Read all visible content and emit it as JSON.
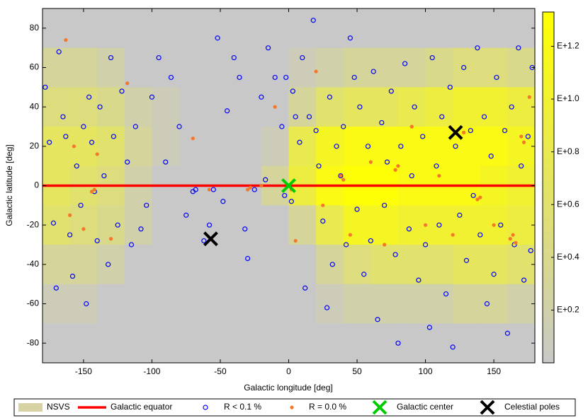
{
  "chart_data": {
    "type": "scatter",
    "xlabel": "Galactic longitude [deg]",
    "ylabel": "Galactic latitude [deg]",
    "xlim": [
      -180,
      180
    ],
    "ylim": [
      -90,
      90
    ],
    "xticks": [
      -150,
      -100,
      -50,
      0,
      50,
      100,
      150
    ],
    "yticks": [
      -80,
      -60,
      -40,
      -20,
      0,
      20,
      40,
      60,
      80
    ],
    "heatmap": {
      "name": "NSVS",
      "legend_color": "#d6d2a4",
      "colormap": [
        "#c8c8c8",
        "#ffff00"
      ],
      "clim": [
        0,
        1.33
      ],
      "cticks": [
        {
          "value": 0.2,
          "label": "E+0.2"
        },
        {
          "value": 0.4,
          "label": "E+0.4"
        },
        {
          "value": 0.6,
          "label": "E+0.6"
        },
        {
          "value": 0.8,
          "label": "E+0.8"
        },
        {
          "value": 1.0,
          "label": "E+1.0"
        },
        {
          "value": 1.2,
          "label": "E+1.2"
        }
      ],
      "lon_edges": [
        -180,
        -160,
        -140,
        -120,
        -100,
        -80,
        -60,
        -40,
        -20,
        0,
        20,
        40,
        60,
        80,
        100,
        120,
        140,
        160,
        180
      ],
      "lat_edges": [
        90,
        70,
        50,
        30,
        10,
        -10,
        -30,
        -50,
        -70,
        -90
      ],
      "values": [
        [
          0,
          0,
          0,
          0,
          0,
          0,
          0,
          0,
          0,
          0,
          0,
          0,
          0,
          0,
          0,
          0,
          0,
          0
        ],
        [
          0.3,
          0.3,
          0.2,
          0,
          0,
          0,
          0,
          0,
          0,
          0.1,
          0.2,
          0.3,
          0.3,
          0.3,
          0.4,
          0.5,
          0.5,
          0.4
        ],
        [
          0.5,
          0.5,
          0.4,
          0.2,
          0.1,
          0,
          0,
          0,
          0,
          0.3,
          0.6,
          0.7,
          0.7,
          0.8,
          0.9,
          1.0,
          1.0,
          0.9
        ],
        [
          0.7,
          0.7,
          0.6,
          0.3,
          0.1,
          0,
          0,
          0,
          0.1,
          0.8,
          1.1,
          1.2,
          1.2,
          1.2,
          1.2,
          1.2,
          1.2,
          1.1
        ],
        [
          0.7,
          0.6,
          0.5,
          0.2,
          0,
          0,
          0,
          0,
          0.3,
          0.9,
          1.2,
          1.3,
          1.3,
          1.2,
          1.2,
          1.2,
          1.1,
          1.0
        ],
        [
          0.6,
          0.5,
          0.4,
          0.2,
          0,
          0,
          0,
          0,
          0,
          0.3,
          0.8,
          1.1,
          1.1,
          1.0,
          1.0,
          1.0,
          1.0,
          0.9
        ],
        [
          0.3,
          0.3,
          0.2,
          0,
          0,
          0,
          0,
          0,
          0,
          0,
          0.3,
          0.5,
          0.6,
          0.6,
          0.6,
          0.7,
          0.7,
          0.6
        ],
        [
          0.1,
          0.1,
          0,
          0,
          0,
          0,
          0,
          0,
          0,
          0,
          0.1,
          0.2,
          0.2,
          0.2,
          0.2,
          0.3,
          0.3,
          0.2
        ],
        [
          0,
          0,
          0,
          0,
          0,
          0,
          0,
          0,
          0,
          0,
          0,
          0,
          0,
          0,
          0,
          0,
          0,
          0
        ]
      ]
    },
    "equator": {
      "name": "Galactic equator",
      "color": "#ff0000",
      "y": 0
    },
    "series": [
      {
        "name": "R < 0.1 %",
        "marker": "circle",
        "color": "#0000ff",
        "x": [
          -178,
          -175,
          -172,
          -170,
          -168,
          -165,
          -163,
          -160,
          -158,
          -155,
          -152,
          -150,
          -148,
          -146,
          -144,
          -142,
          -140,
          -138,
          -135,
          -132,
          -130,
          -128,
          -125,
          -122,
          -118,
          -115,
          -112,
          -108,
          -104,
          -100,
          -95,
          -90,
          -86,
          -80,
          -75,
          -70,
          -68,
          -62,
          -58,
          -55,
          -52,
          -48,
          -45,
          -40,
          -36,
          -32,
          -30,
          -25,
          -20,
          -17,
          -15,
          -10,
          -5,
          -3,
          -2,
          2,
          3,
          5,
          8,
          10,
          12,
          15,
          18,
          20,
          22,
          25,
          28,
          30,
          32,
          35,
          38,
          40,
          42,
          45,
          48,
          50,
          52,
          55,
          58,
          60,
          62,
          65,
          68,
          70,
          72,
          75,
          78,
          80,
          82,
          85,
          88,
          90,
          92,
          95,
          98,
          100,
          103,
          105,
          108,
          110,
          112,
          115,
          118,
          120,
          122,
          125,
          128,
          130,
          133,
          135,
          138,
          140,
          143,
          145,
          148,
          150,
          152,
          155,
          158,
          160,
          163,
          165,
          168,
          170,
          172,
          175,
          177,
          178
        ],
        "y": [
          50,
          22,
          -19,
          -52,
          68,
          35,
          25,
          -25,
          -46,
          10,
          -10,
          30,
          -60,
          45,
          22,
          -3,
          -28,
          40,
          5,
          -40,
          65,
          25,
          -20,
          48,
          12,
          -30,
          30,
          -22,
          -10,
          45,
          65,
          12,
          55,
          30,
          -15,
          -3,
          -2,
          -28,
          -20,
          -2,
          75,
          -8,
          38,
          65,
          55,
          -22,
          -37,
          -2,
          45,
          3,
          70,
          55,
          30,
          -5,
          55,
          -8,
          48,
          35,
          22,
          65,
          -52,
          35,
          84,
          28,
          10,
          -18,
          -62,
          45,
          -40,
          20,
          5,
          30,
          -30,
          75,
          55,
          -12,
          40,
          -45,
          20,
          -28,
          58,
          -68,
          32,
          -10,
          12,
          48,
          -35,
          -80,
          20,
          62,
          -22,
          5,
          40,
          -48,
          25,
          -30,
          -72,
          65,
          10,
          -20,
          35,
          -55,
          50,
          -82,
          20,
          -15,
          60,
          -38,
          28,
          -5,
          70,
          -25,
          35,
          -60,
          15,
          -45,
          55,
          -20,
          28,
          -75,
          40,
          -30,
          70,
          10,
          -48,
          25,
          -33,
          60
        ]
      },
      {
        "name": "R = 0.0 %",
        "marker": "dot",
        "color": "#f5782a",
        "x": [
          -163,
          -160,
          -157,
          -150,
          -144,
          -142,
          -140,
          -130,
          -118,
          -70,
          -58,
          -30,
          -28,
          -20,
          -10,
          0,
          2,
          5,
          20,
          25,
          38,
          40,
          45,
          60,
          70,
          78,
          80,
          90,
          100,
          110,
          120,
          128,
          138,
          140,
          150,
          162,
          164,
          166,
          170,
          172,
          176
        ],
        "y": [
          74,
          -15,
          20,
          -22,
          -3,
          -2,
          16,
          -27,
          52,
          24,
          -2,
          -2,
          -1,
          0,
          40,
          0,
          -2,
          -28,
          58,
          -10,
          5,
          3,
          -25,
          12,
          -30,
          8,
          10,
          30,
          -20,
          5,
          -25,
          27,
          -7,
          -6,
          -20,
          -27,
          -25,
          -29,
          25,
          22,
          45
        ]
      },
      {
        "name": "Galactic center",
        "marker": "x",
        "color": "#00cc00",
        "x": [
          0
        ],
        "y": [
          0
        ]
      },
      {
        "name": "Celestial poles",
        "marker": "x",
        "color": "#000000",
        "x": [
          -57,
          122
        ],
        "y": [
          -27,
          27
        ]
      }
    ]
  }
}
